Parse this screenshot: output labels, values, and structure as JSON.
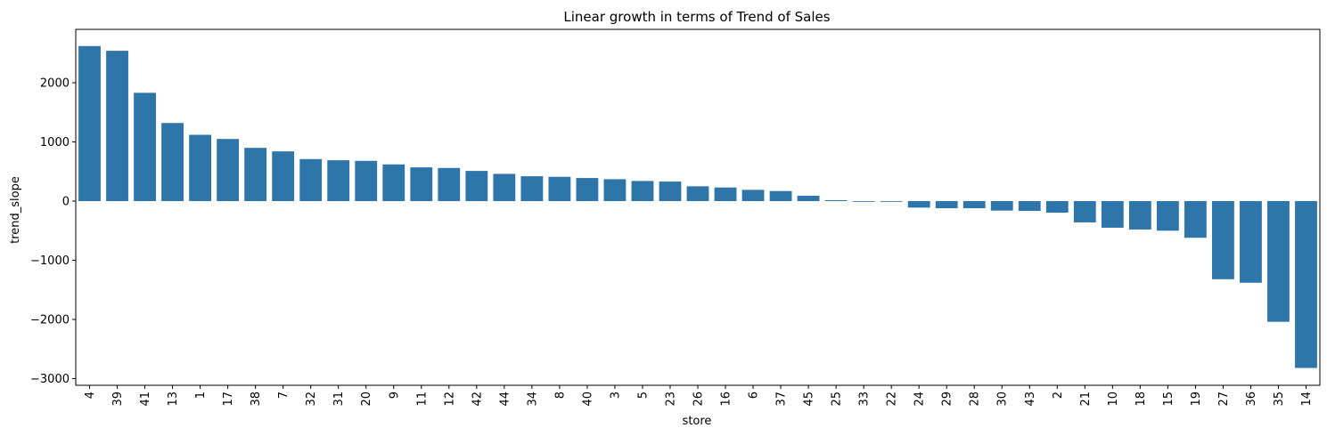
{
  "chart_data": {
    "type": "bar",
    "title": "Linear growth in terms of Trend of Sales",
    "xlabel": "store",
    "ylabel": "trend_slope",
    "categories": [
      "4",
      "39",
      "41",
      "13",
      "1",
      "17",
      "38",
      "7",
      "32",
      "31",
      "20",
      "9",
      "11",
      "12",
      "42",
      "44",
      "34",
      "8",
      "40",
      "3",
      "5",
      "23",
      "26",
      "16",
      "6",
      "37",
      "45",
      "25",
      "33",
      "22",
      "24",
      "29",
      "28",
      "30",
      "43",
      "2",
      "21",
      "10",
      "18",
      "15",
      "19",
      "27",
      "36",
      "35",
      "14"
    ],
    "values": [
      2620,
      2540,
      1830,
      1320,
      1120,
      1050,
      900,
      840,
      710,
      690,
      680,
      620,
      570,
      560,
      510,
      460,
      420,
      410,
      390,
      370,
      340,
      330,
      250,
      230,
      190,
      170,
      90,
      15,
      -10,
      -5,
      -110,
      -120,
      -120,
      -160,
      -165,
      -195,
      -360,
      -450,
      -480,
      -500,
      -620,
      -1320,
      -1380,
      -2040,
      -2820
    ],
    "yticks": [
      -3000,
      -2000,
      -1000,
      0,
      1000,
      2000
    ],
    "ytick_labels": [
      "−3000",
      "−2000",
      "−1000",
      "0",
      "1000",
      "2000"
    ],
    "ylim": [
      -3000,
      2800
    ],
    "bar_color": "#2e75aa",
    "grid": false,
    "legend": "none"
  }
}
